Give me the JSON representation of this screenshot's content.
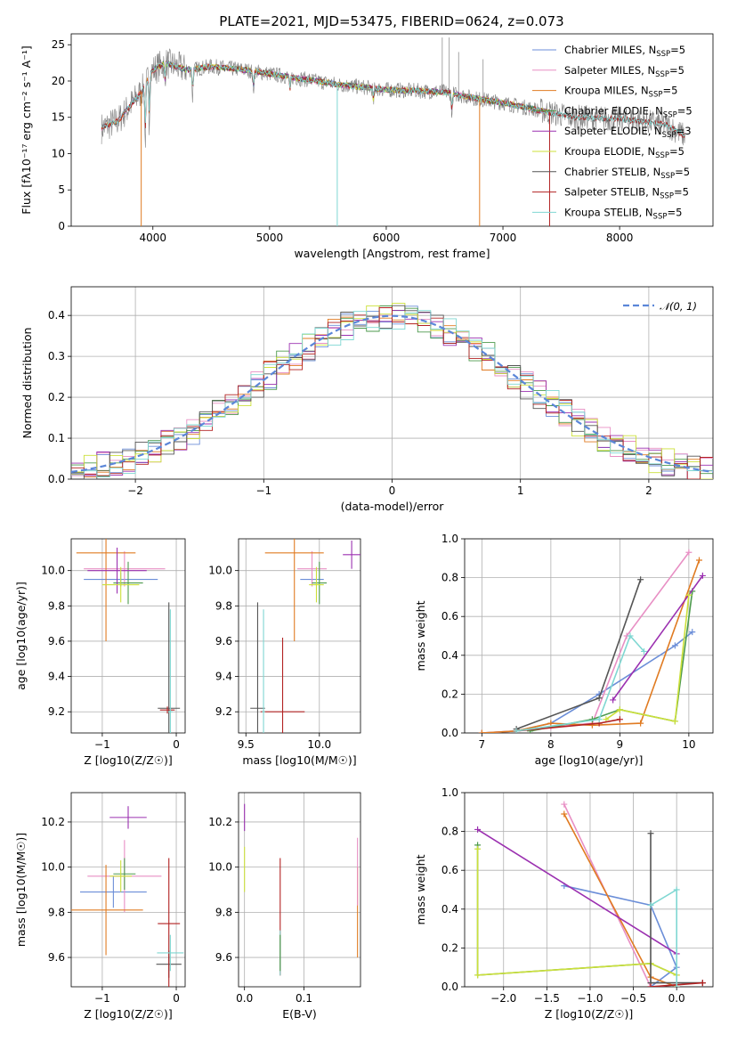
{
  "figure": {
    "title": "PLATE=2021, MJD=53475, FIBERID=0624, z=0.073"
  },
  "colors": {
    "Chabrier MILES": "#6b8ed8",
    "Salpeter MILES": "#e88fc4",
    "Kroupa MILES": "#e07b22",
    "Chabrier ELODIE": "#4d9a4d",
    "Salpeter ELODIE": "#9b30b0",
    "Kroupa ELODIE": "#cce03a",
    "Chabrier STELIB": "#555555",
    "Salpeter STELIB": "#b22222",
    "Kroupa STELIB": "#7fd7d2",
    "data": "#808080",
    "normal": "#5b86d8"
  },
  "legend_models": [
    {
      "name": "Chabrier MILES",
      "nssp": "5"
    },
    {
      "name": "Salpeter MILES",
      "nssp": "5"
    },
    {
      "name": "Kroupa MILES",
      "nssp": "5"
    },
    {
      "name": "Chabrier ELODIE",
      "nssp": "5"
    },
    {
      "name": "Salpeter ELODIE",
      "nssp": "3"
    },
    {
      "name": "Kroupa ELODIE",
      "nssp": "5"
    },
    {
      "name": "Chabrier STELIB",
      "nssp": "5"
    },
    {
      "name": "Salpeter STELIB",
      "nssp": "5"
    },
    {
      "name": "Kroupa STELIB",
      "nssp": "5"
    }
  ],
  "legend_nssp_prefix": "N",
  "legend_nssp_sub": "SSP",
  "chart_data": [
    {
      "id": "spectrum",
      "type": "line",
      "xlabel": "wavelength [Angstrom, rest frame]",
      "ylabel": "Flux [fλ10⁻¹⁷ erg cm⁻² s⁻¹ A⁻¹]",
      "xlim": [
        3300,
        8800
      ],
      "ylim": [
        0,
        26.5
      ],
      "xticks": [
        4000,
        5000,
        6000,
        7000,
        8000
      ],
      "yticks": [
        0,
        5,
        10,
        15,
        20,
        25
      ],
      "continuum": [
        [
          3560,
          13.5
        ],
        [
          3700,
          14.5
        ],
        [
          3800,
          16.5
        ],
        [
          3900,
          18.5
        ],
        [
          4000,
          21.5
        ],
        [
          4100,
          22.5
        ],
        [
          4300,
          21.5
        ],
        [
          4500,
          22
        ],
        [
          4800,
          21.5
        ],
        [
          5200,
          20.5
        ],
        [
          5600,
          19.5
        ],
        [
          6000,
          18.8
        ],
        [
          6500,
          18.5
        ],
        [
          6800,
          17.5
        ],
        [
          7000,
          17
        ],
        [
          7300,
          16
        ],
        [
          7600,
          15
        ],
        [
          8000,
          14.8
        ],
        [
          8400,
          14
        ],
        [
          8550,
          12.5
        ]
      ]
    },
    {
      "id": "residuals",
      "type": "histogram",
      "xlabel": "(data-model)/error",
      "ylabel": "Normed distribution",
      "xlim": [
        -2.5,
        2.5
      ],
      "ylim": [
        0,
        0.47
      ],
      "xticks": [
        -2,
        -1,
        0,
        1,
        2
      ],
      "yticks": [
        0.0,
        0.1,
        0.2,
        0.3,
        0.4
      ],
      "legend": "𝒩(0, 1)",
      "bin_width": 0.1
    },
    {
      "id": "age_vs_Z",
      "type": "errorbar",
      "xlabel": "Z [log10(Z/Z☉)]",
      "ylabel": "age  [log10(age/yr)]",
      "xlim": [
        -1.42,
        0.12
      ],
      "ylim": [
        9.08,
        10.18
      ],
      "xticks": [
        -1,
        0
      ],
      "yticks": [
        9.2,
        9.4,
        9.6,
        9.8,
        10.0
      ],
      "points": [
        {
          "model": "Chabrier MILES",
          "x": -0.75,
          "y": 9.95,
          "xerr": 0.5,
          "yerr": 0.04
        },
        {
          "model": "Salpeter MILES",
          "x": -0.7,
          "y": 10.01,
          "xerr": 0.55,
          "yerr": 0.1
        },
        {
          "model": "Kroupa MILES",
          "x": -0.95,
          "y": 10.1,
          "xerr": 0.4,
          "yerr": 0.5
        },
        {
          "model": "Chabrier ELODIE",
          "x": -0.65,
          "y": 9.93,
          "xerr": 0.2,
          "yerr": 0.12
        },
        {
          "model": "Salpeter ELODIE",
          "x": -0.8,
          "y": 10.0,
          "xerr": 0.4,
          "yerr": 0.13
        },
        {
          "model": "Kroupa ELODIE",
          "x": -0.75,
          "y": 9.92,
          "xerr": 0.25,
          "yerr": 0.1
        },
        {
          "model": "Chabrier STELIB",
          "x": -0.1,
          "y": 9.22,
          "xerr": 0.15,
          "yerr": 0.6
        },
        {
          "model": "Salpeter STELIB",
          "x": -0.12,
          "y": 9.21,
          "xerr": 0.1,
          "yerr": 0.02
        },
        {
          "model": "Kroupa STELIB",
          "x": -0.08,
          "y": 9.2,
          "xerr": 0.03,
          "yerr": 0.58
        }
      ]
    },
    {
      "id": "age_vs_mass",
      "type": "errorbar",
      "xlabel": "mass [log10(M/M☉)]",
      "ylabel": "",
      "xlim": [
        9.45,
        10.28
      ],
      "ylim": [
        9.08,
        10.18
      ],
      "xticks": [
        9.5,
        10.0
      ],
      "yticks": [
        9.2,
        9.4,
        9.6,
        9.8,
        10.0
      ],
      "points": [
        {
          "model": "Chabrier MILES",
          "x": 9.95,
          "y": 9.95,
          "xerr": 0.08,
          "yerr": 0.04
        },
        {
          "model": "Salpeter MILES",
          "x": 9.95,
          "y": 10.01,
          "xerr": 0.1,
          "yerr": 0.1
        },
        {
          "model": "Kroupa MILES",
          "x": 9.83,
          "y": 10.1,
          "xerr": 0.2,
          "yerr": 0.5
        },
        {
          "model": "Chabrier ELODIE",
          "x": 10.0,
          "y": 9.93,
          "xerr": 0.05,
          "yerr": 0.12
        },
        {
          "model": "Salpeter ELODIE",
          "x": 10.22,
          "y": 10.09,
          "xerr": 0.06,
          "yerr": 0.08
        },
        {
          "model": "Kroupa ELODIE",
          "x": 9.98,
          "y": 9.92,
          "xerr": 0.05,
          "yerr": 0.1
        },
        {
          "model": "Chabrier STELIB",
          "x": 9.58,
          "y": 9.22,
          "xerr": 0.05,
          "yerr": 0.6
        },
        {
          "model": "Salpeter STELIB",
          "x": 9.75,
          "y": 9.2,
          "xerr": 0.15,
          "yerr": 0.42
        },
        {
          "model": "Kroupa STELIB",
          "x": 9.62,
          "y": 9.2,
          "xerr": 0.01,
          "yerr": 0.58
        }
      ]
    },
    {
      "id": "mw_vs_age",
      "type": "line",
      "xlabel": "age  [log10(age/yr)]",
      "ylabel": "mass weight",
      "xlim": [
        6.75,
        10.35
      ],
      "ylim": [
        0,
        1.0
      ],
      "xticks": [
        7,
        8,
        9,
        10
      ],
      "yticks": [
        0.0,
        0.2,
        0.4,
        0.6,
        0.8,
        1.0
      ],
      "series": [
        {
          "model": "Chabrier MILES",
          "x": [
            7.0,
            7.5,
            8.0,
            8.7,
            9.8,
            10.05
          ],
          "y": [
            0.0,
            0.01,
            0.05,
            0.2,
            0.45,
            0.52
          ]
        },
        {
          "model": "Salpeter MILES",
          "x": [
            7.0,
            7.5,
            8.0,
            8.6,
            9.1,
            10.0
          ],
          "y": [
            0.0,
            0.01,
            0.03,
            0.05,
            0.5,
            0.93
          ]
        },
        {
          "model": "Kroupa MILES",
          "x": [
            7.0,
            7.5,
            8.0,
            8.6,
            9.3,
            10.15
          ],
          "y": [
            0.0,
            0.01,
            0.05,
            0.04,
            0.05,
            0.89
          ]
        },
        {
          "model": "Chabrier ELODIE",
          "x": [
            7.7,
            8.6,
            9.0,
            9.8,
            10.05
          ],
          "y": [
            0.01,
            0.07,
            0.12,
            0.06,
            0.73
          ]
        },
        {
          "model": "Salpeter ELODIE",
          "x": [
            8.9,
            10.2
          ],
          "y": [
            0.17,
            0.81
          ]
        },
        {
          "model": "Kroupa ELODIE",
          "x": [
            8.8,
            9.0,
            9.8,
            10.0
          ],
          "y": [
            0.07,
            0.12,
            0.06,
            0.71
          ]
        },
        {
          "model": "Chabrier STELIB",
          "x": [
            7.5,
            8.7,
            9.3
          ],
          "y": [
            0.02,
            0.18,
            0.79
          ]
        },
        {
          "model": "Salpeter STELIB",
          "x": [
            7.5,
            8.7,
            9.0
          ],
          "y": [
            0.01,
            0.05,
            0.07
          ]
        },
        {
          "model": "Kroupa STELIB",
          "x": [
            7.5,
            8.7,
            9.15,
            9.35
          ],
          "y": [
            0.01,
            0.07,
            0.5,
            0.42
          ]
        }
      ]
    },
    {
      "id": "mass_vs_Z",
      "type": "errorbar",
      "xlabel": "Z [log10(Z/Z☉)]",
      "ylabel": "mass [log10(M/M☉)]",
      "xlim": [
        -1.42,
        0.12
      ],
      "ylim": [
        9.47,
        10.33
      ],
      "xticks": [
        -1,
        0
      ],
      "yticks": [
        9.6,
        9.8,
        10.0,
        10.2
      ],
      "points": [
        {
          "model": "Chabrier MILES",
          "x": -0.85,
          "y": 9.89,
          "xerr": 0.45,
          "yerr": 0.07
        },
        {
          "model": "Salpeter MILES",
          "x": -0.7,
          "y": 9.96,
          "xerr": 0.5,
          "yerr": 0.16
        },
        {
          "model": "Kroupa MILES",
          "x": -0.95,
          "y": 9.81,
          "xerr": 0.5,
          "yerr": 0.2
        },
        {
          "model": "Chabrier ELODIE",
          "x": -0.7,
          "y": 9.97,
          "xerr": 0.15,
          "yerr": 0.07
        },
        {
          "model": "Salpeter ELODIE",
          "x": -0.65,
          "y": 10.22,
          "xerr": 0.25,
          "yerr": 0.05
        },
        {
          "model": "Kroupa ELODIE",
          "x": -0.75,
          "y": 9.96,
          "xerr": 0.15,
          "yerr": 0.07
        },
        {
          "model": "Chabrier STELIB",
          "x": -0.1,
          "y": 9.57,
          "xerr": 0.17,
          "yerr": 0.06
        },
        {
          "model": "Salpeter STELIB",
          "x": -0.1,
          "y": 9.75,
          "xerr": 0.15,
          "yerr": 0.29
        },
        {
          "model": "Kroupa STELIB",
          "x": -0.08,
          "y": 9.62,
          "xerr": 0.18,
          "yerr": 0.08
        }
      ]
    },
    {
      "id": "mass_vs_ebv",
      "type": "errorbar",
      "xlabel": "E(B-V)",
      "ylabel": "",
      "xlim": [
        -0.01,
        0.195
      ],
      "ylim": [
        9.47,
        10.33
      ],
      "xticks": [
        0.0,
        0.1
      ],
      "yticks": [
        9.6,
        9.8,
        10.0,
        10.2
      ],
      "points": [
        {
          "model": "Salpeter ELODIE",
          "x": 0.0,
          "y": 10.22,
          "xerr": 0,
          "yerr": 0.06
        },
        {
          "model": "Kroupa ELODIE",
          "x": 0.0,
          "y": 9.99,
          "xerr": 0,
          "yerr": 0.1
        },
        {
          "model": "Salpeter STELIB",
          "x": 0.06,
          "y": 9.78,
          "xerr": 0,
          "yerr": 0.26
        },
        {
          "model": "Kroupa STELIB",
          "x": 0.06,
          "y": 9.62,
          "xerr": 0,
          "yerr": 0.1
        },
        {
          "model": "Chabrier ELODIE",
          "x": 0.06,
          "y": 9.62,
          "xerr": 0,
          "yerr": 0.08
        },
        {
          "model": "Kroupa MILES",
          "x": 0.19,
          "y": 9.8,
          "xerr": 0,
          "yerr": 0.2
        },
        {
          "model": "Salpeter MILES",
          "x": 0.19,
          "y": 9.98,
          "xerr": 0,
          "yerr": 0.15
        }
      ]
    },
    {
      "id": "mw_vs_Z",
      "type": "line",
      "xlabel": "Z [log10(Z/Z☉)]",
      "ylabel": "mass weight",
      "xlim": [
        -2.45,
        0.42
      ],
      "ylim": [
        0,
        1.0
      ],
      "xticks": [
        -2.0,
        -1.5,
        -1.0,
        -0.5,
        0.0
      ],
      "yticks": [
        0.0,
        0.2,
        0.4,
        0.6,
        0.8,
        1.0
      ],
      "series": [
        {
          "model": "Chabrier MILES",
          "x": [
            -1.3,
            -0.3,
            0.0,
            -0.3
          ],
          "y": [
            0.52,
            0.42,
            0.1,
            0.0
          ]
        },
        {
          "model": "Salpeter MILES",
          "x": [
            -1.3,
            -0.3,
            0.0
          ],
          "y": [
            0.94,
            0.0,
            0.01
          ]
        },
        {
          "model": "Kroupa MILES",
          "x": [
            -1.3,
            -0.3,
            0.0
          ],
          "y": [
            0.89,
            0.05,
            0.0
          ]
        },
        {
          "model": "Chabrier ELODIE",
          "x": [
            -2.3,
            -2.3,
            -0.3,
            0.0
          ],
          "y": [
            0.73,
            0.06,
            0.12,
            0.06
          ]
        },
        {
          "model": "Salpeter ELODIE",
          "x": [
            -2.3,
            0.0
          ],
          "y": [
            0.81,
            0.17
          ]
        },
        {
          "model": "Kroupa ELODIE",
          "x": [
            -2.3,
            -2.3,
            -0.3,
            0.0
          ],
          "y": [
            0.71,
            0.06,
            0.12,
            0.06
          ]
        },
        {
          "model": "Chabrier STELIB",
          "x": [
            -0.3,
            -0.3,
            0.3
          ],
          "y": [
            0.79,
            0.02,
            0.02
          ]
        },
        {
          "model": "Salpeter STELIB",
          "x": [
            -0.3,
            0.3
          ],
          "y": [
            0.0,
            0.02
          ]
        },
        {
          "model": "Kroupa STELIB",
          "x": [
            -0.3,
            0.0,
            0.0
          ],
          "y": [
            0.42,
            0.5,
            0.0
          ]
        }
      ]
    }
  ]
}
